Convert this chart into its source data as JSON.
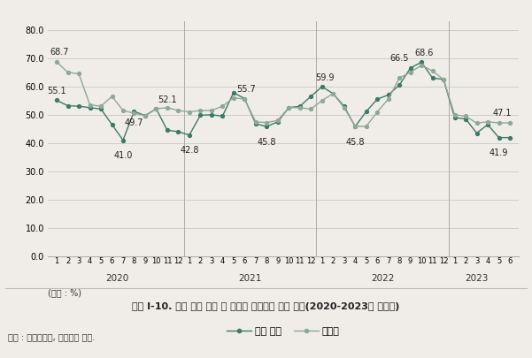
{
  "total_housing": [
    55.1,
    53.2,
    53.0,
    52.5,
    52.0,
    46.5,
    41.0,
    51.2,
    49.7,
    52.1,
    44.5,
    44.0,
    42.8,
    49.8,
    50.0,
    49.5,
    57.8,
    55.7,
    46.8,
    45.8,
    47.5,
    52.5,
    53.0,
    56.5,
    59.9,
    57.5,
    53.0,
    45.8,
    51.1,
    55.5,
    57.0,
    60.5,
    66.5,
    68.6,
    63.0,
    62.5,
    49.0,
    48.5,
    43.5,
    46.5,
    41.9,
    41.9
  ],
  "apartment": [
    68.7,
    65.0,
    64.5,
    53.5,
    53.0,
    56.5,
    51.5,
    50.5,
    49.7,
    52.1,
    52.5,
    51.5,
    51.0,
    51.5,
    51.5,
    53.0,
    56.0,
    55.5,
    47.5,
    47.2,
    48.0,
    52.5,
    52.5,
    52.0,
    55.0,
    57.5,
    52.5,
    46.0,
    45.8,
    51.0,
    55.5,
    63.0,
    65.0,
    67.5,
    65.5,
    62.5,
    50.0,
    49.5,
    47.0,
    47.5,
    47.1,
    47.1
  ],
  "line_color_total": "#3d7a6a",
  "line_color_apartment": "#8fa898",
  "yticks": [
    0.0,
    10.0,
    20.0,
    30.0,
    40.0,
    50.0,
    60.0,
    70.0,
    80.0
  ],
  "ylim": [
    0.0,
    83.0
  ],
  "year_boundaries": [
    11.5,
    23.5,
    35.5
  ],
  "year_labels": [
    "2020",
    "2021",
    "2022",
    "2023"
  ],
  "year_centers": [
    5.5,
    17.5,
    29.5,
    38.0
  ],
  "legend_labels": [
    "전체 주택",
    "아파트"
  ],
  "unit_label": "(단위 : %)",
  "caption": "그림 Ⅰ-10. 서울 전체 주택 및 아파트 전세가율 월별 변화(2020-2023년 상반기)",
  "source_label": "자료 : 국토교통부, 실거래가 자료.",
  "figure_bg": "#f0ede8",
  "chart_bg": "#f0ede8",
  "ann_total": {
    "0": 55.1,
    "6": 41.0,
    "12": 42.8,
    "17": 55.7,
    "19": 45.8,
    "24": 59.9,
    "27": 45.8,
    "32": 66.5,
    "33": 68.6,
    "40": 41.9
  },
  "ann_apt": {
    "0": 68.7,
    "8": 49.7,
    "9": 52.1,
    "40": 47.1
  }
}
